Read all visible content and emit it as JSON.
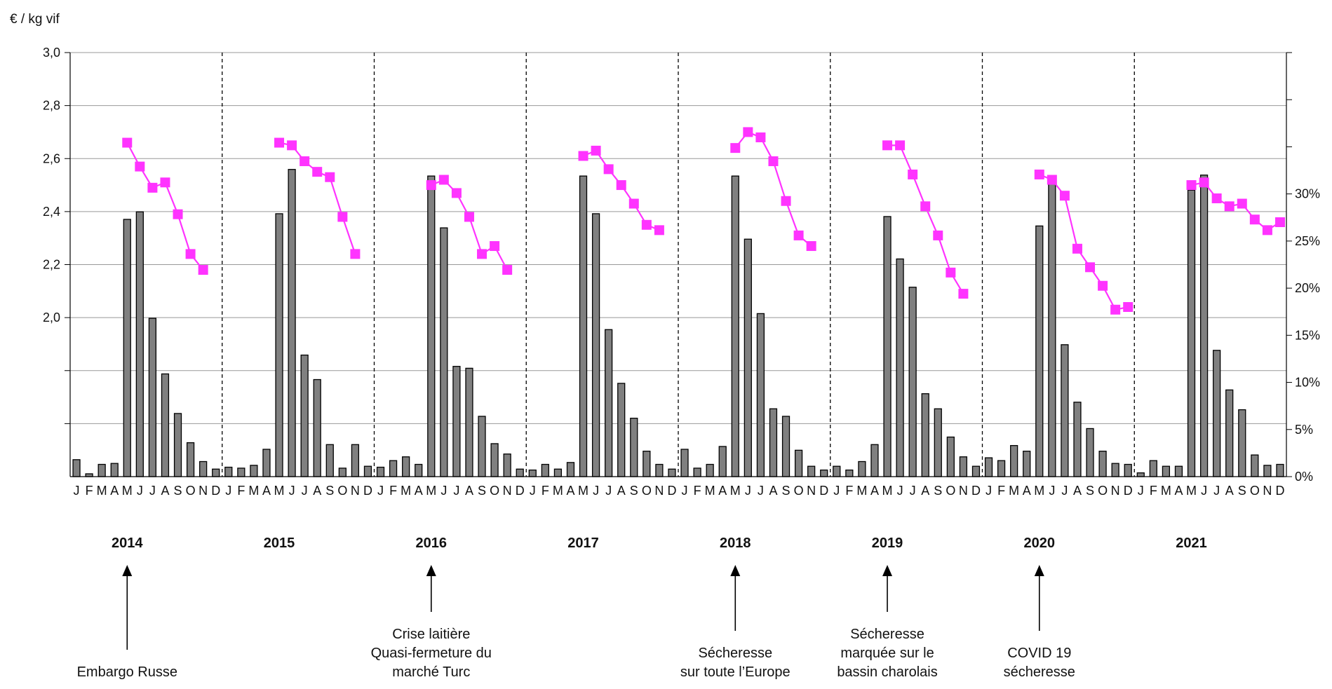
{
  "chart_data": {
    "type": "bar+line",
    "unit_label": "€ / kg vif",
    "left_axis": {
      "ylim": [
        1.4,
        3.0
      ],
      "ticks": [
        2.0,
        2.2,
        2.4,
        2.6,
        2.8,
        3.0
      ],
      "tick_labels": [
        "2,0",
        "2,2",
        "2,4",
        "2,6",
        "2,8",
        "3,0"
      ]
    },
    "right_axis": {
      "ylim": [
        0,
        45
      ],
      "ticks": [
        0,
        5,
        10,
        15,
        20,
        25,
        30
      ],
      "tick_labels": [
        "0%",
        "5%",
        "10%",
        "15%",
        "20%",
        "25%",
        "30%"
      ]
    },
    "month_labels": [
      "J",
      "F",
      "M",
      "A",
      "M",
      "J",
      "J",
      "A",
      "S",
      "O",
      "N",
      "D"
    ],
    "colors": {
      "bars": "#808080",
      "bar_outline": "#000000",
      "line": "#ff33ff",
      "grid": "#999999"
    },
    "years": [
      "2014",
      "2015",
      "2016",
      "2017",
      "2018",
      "2019",
      "2020",
      "2021"
    ],
    "bars_percent": [
      [
        1.8,
        0.3,
        1.3,
        1.4,
        27.3,
        28.1,
        16.8,
        10.9,
        6.7,
        3.6,
        1.6,
        0.8
      ],
      [
        1.0,
        0.9,
        1.2,
        2.9,
        27.9,
        32.6,
        12.9,
        10.3,
        3.4,
        0.9,
        3.4,
        1.1
      ],
      [
        1.0,
        1.7,
        2.1,
        1.3,
        31.9,
        26.4,
        11.7,
        11.5,
        6.4,
        3.5,
        2.4,
        0.8
      ],
      [
        0.7,
        1.3,
        0.8,
        1.5,
        31.9,
        27.9,
        15.6,
        9.9,
        6.2,
        2.7,
        1.3,
        0.8
      ],
      [
        2.9,
        0.9,
        1.3,
        3.2,
        31.9,
        25.2,
        17.3,
        7.2,
        6.4,
        2.8,
        1.1,
        0.7
      ],
      [
        1.1,
        0.7,
        1.6,
        3.4,
        27.6,
        23.1,
        20.1,
        8.8,
        7.2,
        4.2,
        2.1,
        1.1
      ],
      [
        2.0,
        1.7,
        3.3,
        2.7,
        26.6,
        31.9,
        14.0,
        7.9,
        5.1,
        2.7,
        1.4,
        1.3
      ],
      [
        0.4,
        1.7,
        1.1,
        1.1,
        30.4,
        32.0,
        13.4,
        9.2,
        7.1,
        2.3,
        1.2,
        1.3
      ]
    ],
    "price_series": [
      {
        "from_month": 5,
        "values": [
          2.66,
          2.57,
          2.49,
          2.51,
          2.39,
          2.24,
          2.18
        ]
      },
      {
        "from_month": 5,
        "values": [
          2.66,
          2.65,
          2.59,
          2.55,
          2.53,
          2.38,
          2.24
        ]
      },
      {
        "from_month": 5,
        "values": [
          2.5,
          2.52,
          2.47,
          2.38,
          2.24,
          2.27,
          2.18
        ]
      },
      {
        "from_month": 5,
        "values": [
          2.61,
          2.63,
          2.56,
          2.5,
          2.43,
          2.35,
          2.33
        ]
      },
      {
        "from_month": 5,
        "values": [
          2.64,
          2.7,
          2.68,
          2.59,
          2.44,
          2.31,
          2.27
        ]
      },
      {
        "from_month": 5,
        "values": [
          2.65,
          2.65,
          2.54,
          2.42,
          2.31,
          2.17,
          2.09
        ]
      },
      {
        "from_month": 5,
        "values": [
          2.54,
          2.52,
          2.46,
          2.26,
          2.19,
          2.12,
          2.03,
          2.04
        ]
      },
      {
        "from_month": 5,
        "values": [
          2.5,
          2.51,
          2.45,
          2.42,
          2.43,
          2.37,
          2.33,
          2.36
        ]
      }
    ],
    "annotations": [
      {
        "year": "2014",
        "lines": [
          "Embargo Russe"
        ]
      },
      {
        "year": "2016",
        "lines": [
          "Crise laitière",
          "Quasi-fermeture du",
          "marché Turc"
        ]
      },
      {
        "year": "2018",
        "lines": [
          "Sécheresse",
          "sur toute l’Europe"
        ]
      },
      {
        "year": "2019",
        "lines": [
          "Sécheresse",
          "marquée sur le",
          "bassin charolais"
        ]
      },
      {
        "year": "2020",
        "lines": [
          "COVID 19",
          "sécheresse"
        ]
      }
    ]
  }
}
